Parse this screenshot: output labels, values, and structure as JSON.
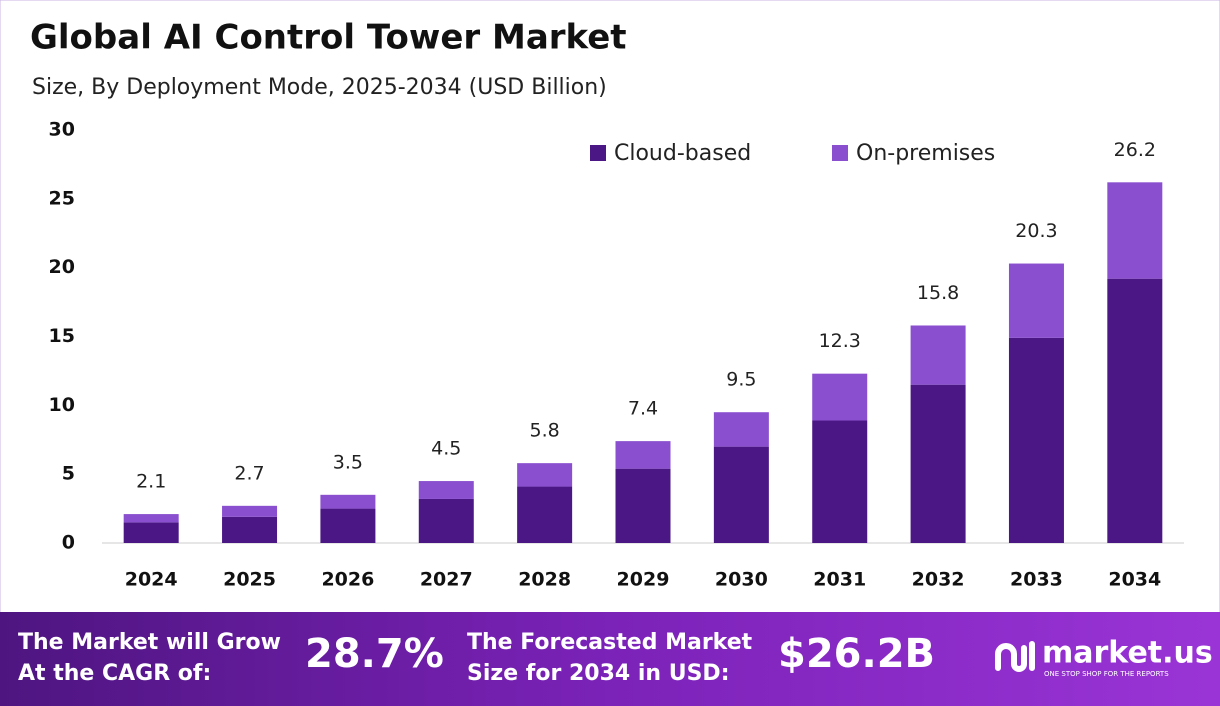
{
  "chart_data": {
    "type": "stacked_bar",
    "title": "Global AI Control Tower Market",
    "subtitle": "Size, By Deployment Mode, 2025-2034 (USD Billion)",
    "categories": [
      "2024",
      "2025",
      "2026",
      "2027",
      "2028",
      "2029",
      "2030",
      "2031",
      "2032",
      "2033",
      "2034"
    ],
    "series": [
      {
        "name": "Cloud-based",
        "color": "#4b1785",
        "values": [
          1.5,
          1.9,
          2.5,
          3.2,
          4.1,
          5.4,
          7.0,
          8.9,
          11.5,
          14.9,
          19.2
        ]
      },
      {
        "name": "On-premises",
        "color": "#8a4fcf",
        "values": [
          0.6,
          0.8,
          1.0,
          1.3,
          1.7,
          2.0,
          2.5,
          3.4,
          4.3,
          5.4,
          7.0
        ]
      }
    ],
    "totals": [
      2.1,
      2.7,
      3.5,
      4.5,
      5.8,
      7.4,
      9.5,
      12.3,
      15.8,
      20.3,
      26.2
    ],
    "ylim": [
      0,
      30
    ],
    "yticks": [
      0,
      5,
      10,
      15,
      20,
      25,
      30
    ],
    "legend": "top-right"
  },
  "footer": {
    "cagr_text_1": "The Market will Grow",
    "cagr_text_2": "At the CAGR of:",
    "cagr_value": "28.7%",
    "forecast_text_1": "The Forecasted Market",
    "forecast_text_2": "Size for 2034 in USD:",
    "forecast_value": "$26.2B",
    "logo": "market.us",
    "tagline": "ONE STOP SHOP FOR THE REPORTS"
  }
}
